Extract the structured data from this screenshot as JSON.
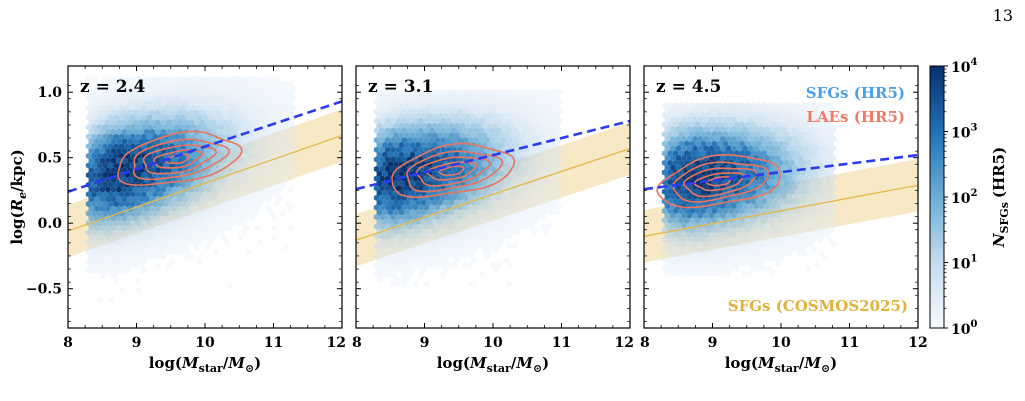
{
  "page_number": "13",
  "colors": {
    "sfg_hex": "#1f6fb4",
    "lae_contour": "#e8765e",
    "hr5_fit": "#2a3cf0",
    "cosmos": "#e6b84a",
    "cosmos_band": "#f7e9c6",
    "legend_sfg": "#4a9fe6",
    "legend_lae": "#f07a63",
    "legend_cosmos": "#e0b23c"
  },
  "legend": {
    "sfg": "SFGs (HR5)",
    "lae": "LAEs (HR5)",
    "cosmos": "SFGs (COSMOS2025)"
  },
  "colorbar": {
    "label": "N_SFGs (HR5)",
    "label_main": "N",
    "label_sub": "SFGs",
    "label_tail": "(HR5)",
    "ticks": [
      {
        "base": "10",
        "exp": "4"
      },
      {
        "base": "10",
        "exp": "3"
      },
      {
        "base": "10",
        "exp": "2"
      },
      {
        "base": "10",
        "exp": "1"
      },
      {
        "base": "10",
        "exp": "0"
      }
    ]
  },
  "axes": {
    "ylabel": "log(R_e/kpc)",
    "xlabel": "log(M_star/M_⊙)"
  },
  "chart_data": [
    {
      "type": "scatter",
      "panel_label": "z = 2.4",
      "xlim": [
        8,
        12
      ],
      "ylim": [
        -0.8,
        1.2
      ],
      "x_ticks": [
        "8",
        "9",
        "10",
        "11",
        "12"
      ],
      "y_ticks": [
        "1.0",
        "0.5",
        "0.0",
        "−0.5"
      ],
      "hr5_fit": {
        "x": [
          8.0,
          12.0
        ],
        "y": [
          0.24,
          0.93
        ]
      },
      "cosmos_fit": {
        "x": [
          8.0,
          12.0
        ],
        "y": [
          -0.06,
          0.67
        ],
        "band_halfwidth": 0.2
      },
      "sfg_density_peak": {
        "x": 8.7,
        "y": 0.38
      },
      "lae_contour_center": {
        "x": 9.6,
        "y": 0.49
      },
      "hex_extent": {
        "x": [
          8.3,
          11.3
        ],
        "y": [
          -0.6,
          1.1
        ]
      }
    },
    {
      "type": "scatter",
      "panel_label": "z = 3.1",
      "xlim": [
        8,
        12
      ],
      "ylim": [
        -0.8,
        1.2
      ],
      "x_ticks": [
        "8",
        "9",
        "10",
        "11",
        "12"
      ],
      "y_ticks": [],
      "hr5_fit": {
        "x": [
          8.0,
          12.0
        ],
        "y": [
          0.26,
          0.78
        ]
      },
      "cosmos_fit": {
        "x": [
          8.0,
          12.0
        ],
        "y": [
          -0.13,
          0.57
        ],
        "band_halfwidth": 0.2
      },
      "sfg_density_peak": {
        "x": 8.6,
        "y": 0.36
      },
      "lae_contour_center": {
        "x": 9.4,
        "y": 0.4
      },
      "hex_extent": {
        "x": [
          8.3,
          11.0
        ],
        "y": [
          -0.5,
          1.0
        ]
      }
    },
    {
      "type": "scatter",
      "panel_label": "z = 4.5",
      "xlim": [
        8,
        12
      ],
      "ylim": [
        -0.8,
        1.2
      ],
      "x_ticks": [
        "8",
        "9",
        "10",
        "11",
        "12"
      ],
      "y_ticks": [],
      "hr5_fit": {
        "x": [
          8.0,
          12.0
        ],
        "y": [
          0.26,
          0.52
        ]
      },
      "cosmos_fit": {
        "x": [
          8.0,
          12.0
        ],
        "y": [
          -0.1,
          0.29
        ],
        "band_halfwidth": 0.2
      },
      "sfg_density_peak": {
        "x": 8.7,
        "y": 0.34
      },
      "lae_contour_center": {
        "x": 9.1,
        "y": 0.32
      },
      "hex_extent": {
        "x": [
          8.3,
          10.8
        ],
        "y": [
          -0.4,
          0.9
        ]
      }
    }
  ]
}
